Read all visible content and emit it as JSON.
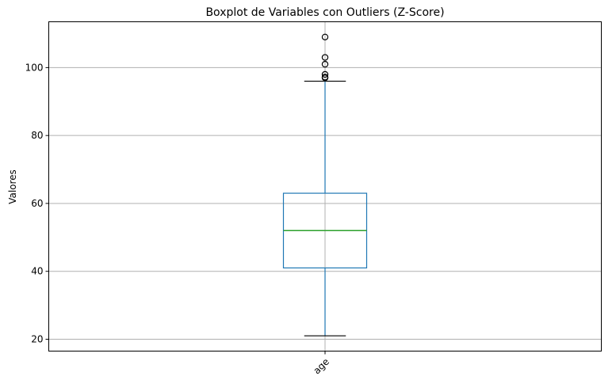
{
  "chart_data": {
    "type": "boxplot",
    "title": "Boxplot de Variables con Outliers (Z-Score)",
    "xlabel": "",
    "ylabel": "Valores",
    "categories": [
      "age"
    ],
    "ylim": [
      16.5,
      113.5
    ],
    "yticks": [
      20,
      40,
      60,
      80,
      100
    ],
    "grid": true,
    "x_tick_rotation": -45,
    "boxes": [
      {
        "category": "age",
        "whisker_low": 21,
        "q1": 41,
        "median": 52,
        "q3": 63,
        "whisker_high": 96,
        "outliers": [
          97,
          97.2,
          98,
          101,
          103,
          109
        ]
      }
    ],
    "colors": {
      "box": "#1f77b4",
      "median": "#2ca02c",
      "caps": "#000000",
      "grid": "#b0b0b0",
      "outlier": "#000000"
    }
  }
}
